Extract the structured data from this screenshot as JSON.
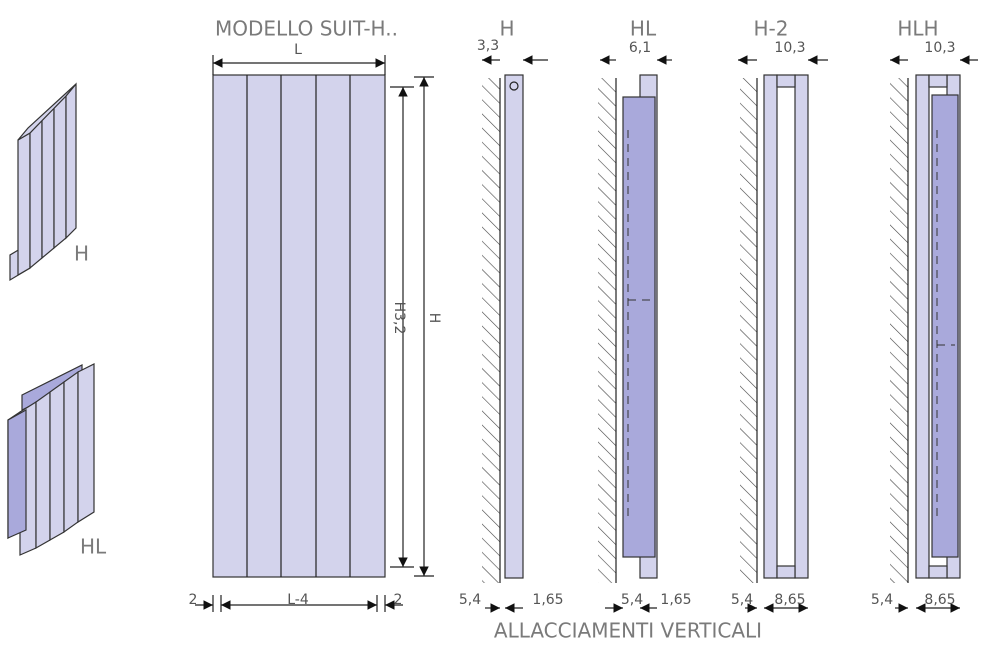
{
  "title": "MODELLO SUIT-H..",
  "footer": "ALLACCIAMENTI VERTICALI",
  "views": [
    {
      "label": "H"
    },
    {
      "label": "HL"
    }
  ],
  "front": {
    "width": "L",
    "height_inner": "H3,2",
    "height_outer": "H",
    "margin_left": "2",
    "inner_width": "L-4",
    "margin_right": "2"
  },
  "sections": [
    {
      "label": "H",
      "top": "3,3",
      "bottom_left": "5,4",
      "bottom_right": "1,65"
    },
    {
      "label": "HL",
      "top": "6,1",
      "bottom_left": "5,4",
      "bottom_right": "1,65"
    },
    {
      "label": "H-2",
      "top": "10,3",
      "bottom_left": "5,4",
      "bottom_right": "8,65"
    },
    {
      "label": "HLH",
      "top": "10,3",
      "bottom_left": "5,4",
      "bottom_right": "8,65"
    }
  ]
}
